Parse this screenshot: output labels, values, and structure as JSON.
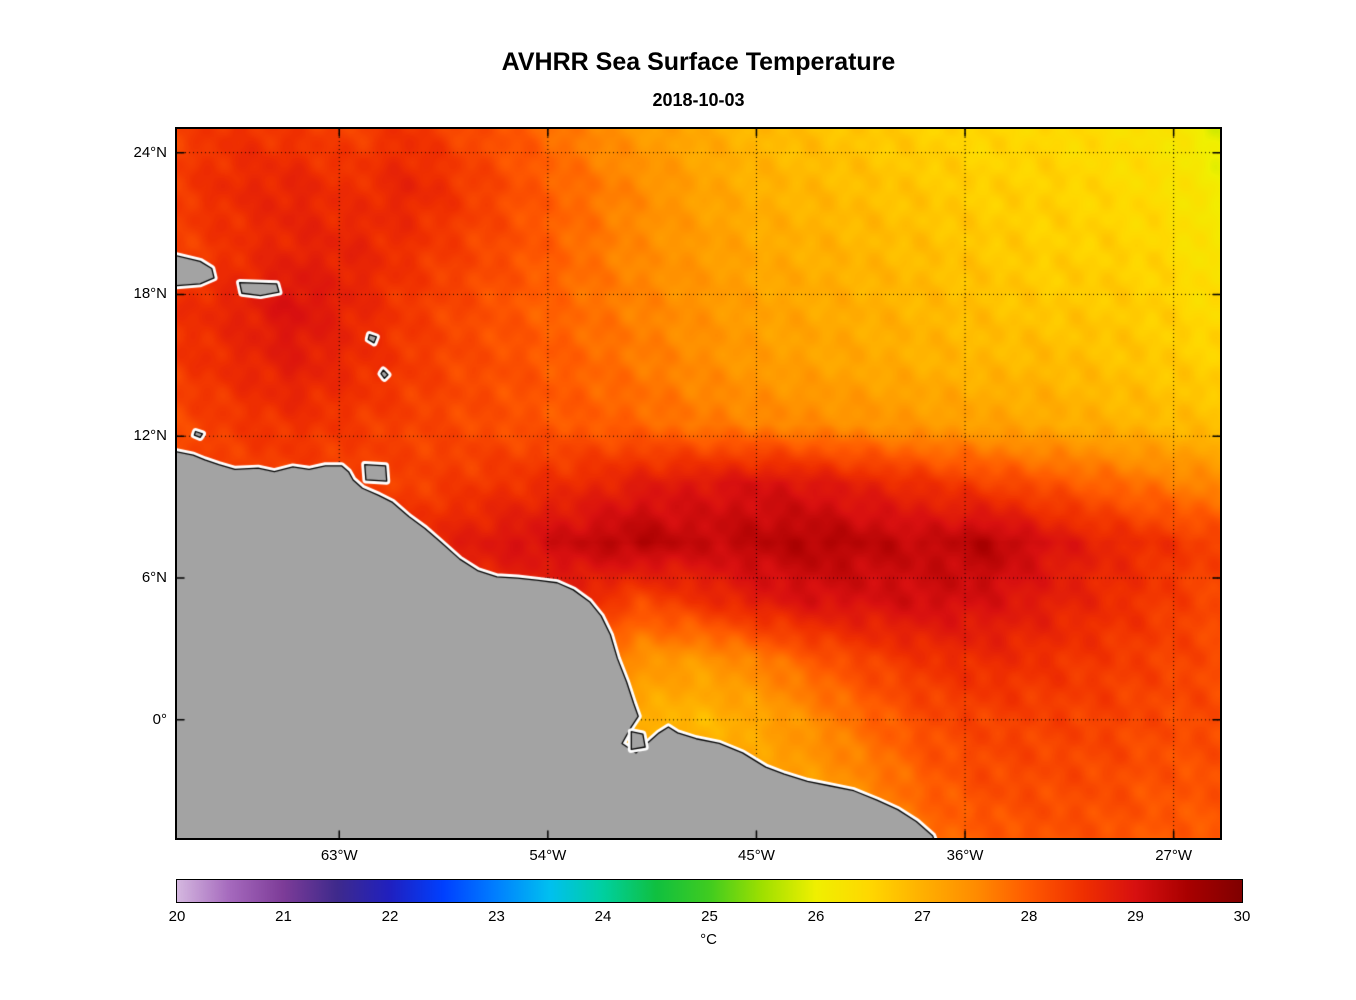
{
  "chart_data": {
    "type": "heatmap",
    "title": "AVHRR Sea Surface Temperature",
    "subtitle": "2018-10-03",
    "variable": "Sea Surface Temperature",
    "units": "°C",
    "extent": {
      "lon_min": -70,
      "lon_max": -25,
      "lat_min": -5,
      "lat_max": 25
    },
    "grid": {
      "lon_start": -70,
      "lon_step": 2.5,
      "lat_start": 25,
      "lat_step": -2.5,
      "values": [
        [
          28.3,
          28.5,
          28.4,
          28.3,
          28.5,
          28.2,
          28.0,
          27.6,
          27.3,
          27.1,
          26.9,
          26.8,
          26.7,
          26.6,
          26.5,
          26.5,
          26.4,
          26.3,
          25.9
        ],
        [
          28.4,
          28.6,
          28.7,
          28.5,
          28.7,
          28.4,
          28.1,
          27.8,
          27.5,
          27.2,
          27.0,
          26.9,
          26.8,
          26.7,
          26.6,
          26.6,
          26.5,
          26.4,
          26.1
        ],
        [
          28.3,
          28.5,
          28.7,
          28.7,
          28.5,
          28.3,
          28.1,
          27.8,
          27.5,
          27.3,
          27.1,
          27.0,
          26.9,
          26.8,
          26.7,
          26.6,
          26.6,
          26.5,
          26.2
        ],
        [
          28.5,
          28.7,
          29.0,
          28.7,
          28.4,
          28.2,
          28.0,
          27.8,
          27.6,
          27.4,
          27.2,
          27.1,
          27.0,
          26.9,
          26.8,
          26.7,
          26.7,
          26.6,
          26.4
        ],
        [
          28.4,
          28.6,
          28.8,
          28.6,
          28.4,
          28.2,
          28.1,
          27.9,
          27.7,
          27.5,
          27.3,
          27.2,
          27.1,
          27.0,
          26.9,
          26.9,
          26.8,
          26.7,
          26.6
        ],
        [
          28.2,
          28.4,
          28.5,
          28.4,
          28.3,
          28.2,
          28.1,
          28.0,
          27.9,
          27.7,
          27.6,
          27.5,
          27.4,
          27.3,
          27.2,
          27.1,
          27.0,
          26.9,
          26.8
        ],
        [
          28.2,
          28.3,
          28.3,
          28.3,
          28.3,
          28.4,
          28.5,
          28.6,
          28.8,
          28.9,
          29.0,
          28.9,
          28.7,
          28.5,
          28.3,
          28.1,
          27.9,
          27.7,
          27.5
        ],
        [
          28.4,
          28.4,
          28.5,
          28.5,
          28.6,
          28.8,
          29.0,
          29.2,
          29.4,
          29.2,
          29.3,
          29.4,
          29.3,
          29.2,
          29.4,
          29.0,
          28.7,
          28.5,
          28.3
        ],
        [
          28.5,
          28.5,
          28.5,
          28.5,
          28.5,
          28.6,
          28.6,
          28.6,
          28.2,
          28.5,
          28.8,
          29.0,
          29.0,
          29.1,
          29.0,
          28.8,
          28.6,
          28.4,
          28.2
        ],
        [
          28.2,
          28.2,
          28.2,
          28.2,
          28.2,
          28.1,
          28.0,
          27.8,
          27.4,
          27.3,
          27.6,
          28.0,
          28.3,
          28.5,
          28.6,
          28.5,
          28.4,
          28.3,
          28.2
        ],
        [
          28.0,
          28.0,
          28.0,
          28.0,
          27.9,
          27.8,
          27.6,
          27.3,
          27.0,
          26.9,
          27.1,
          27.5,
          27.9,
          28.2,
          28.3,
          28.3,
          28.3,
          28.2,
          28.2
        ],
        [
          27.8,
          27.8,
          27.8,
          27.8,
          27.8,
          27.7,
          27.6,
          27.4,
          27.2,
          27.1,
          27.2,
          27.3,
          27.6,
          28.0,
          28.2,
          28.2,
          28.2,
          28.1,
          28.1
        ],
        [
          27.6,
          27.6,
          27.6,
          27.6,
          27.6,
          27.6,
          27.5,
          27.4,
          27.3,
          27.2,
          27.2,
          27.3,
          27.5,
          27.8,
          28.0,
          28.1,
          28.1,
          28.0,
          28.0
        ]
      ]
    },
    "colormap": {
      "min": 20,
      "max": 30,
      "stops": [
        [
          20.0,
          "#D5B8E0"
        ],
        [
          20.5,
          "#A569BD"
        ],
        [
          21.0,
          "#7D3C98"
        ],
        [
          21.5,
          "#3F2A8C"
        ],
        [
          22.0,
          "#2020C0"
        ],
        [
          22.5,
          "#0040FF"
        ],
        [
          23.0,
          "#0080FF"
        ],
        [
          23.5,
          "#00C0F0"
        ],
        [
          24.0,
          "#00D0A0"
        ],
        [
          24.5,
          "#10C040"
        ],
        [
          25.0,
          "#40CC20"
        ],
        [
          25.5,
          "#A0E000"
        ],
        [
          26.0,
          "#F0F000"
        ],
        [
          26.5,
          "#FFD800"
        ],
        [
          27.0,
          "#FFB000"
        ],
        [
          27.5,
          "#FF8C00"
        ],
        [
          28.0,
          "#FF5A00"
        ],
        [
          28.5,
          "#F03000"
        ],
        [
          29.0,
          "#D81010"
        ],
        [
          29.5,
          "#A80000"
        ],
        [
          30.0,
          "#800000"
        ]
      ]
    },
    "colorbar": {
      "ticks": [
        20,
        21,
        22,
        23,
        24,
        25,
        26,
        27,
        28,
        29,
        30
      ],
      "label": "°C"
    },
    "xticks": [
      {
        "label": "63°W",
        "lon": -63
      },
      {
        "label": "54°W",
        "lon": -54
      },
      {
        "label": "45°W",
        "lon": -45
      },
      {
        "label": "36°W",
        "lon": -36
      },
      {
        "label": "27°W",
        "lon": -27
      }
    ],
    "yticks": [
      {
        "label": "24°N",
        "lat": 24
      },
      {
        "label": "18°N",
        "lat": 18
      },
      {
        "label": "12°N",
        "lat": 12
      },
      {
        "label": "6°N",
        "lat": 6
      },
      {
        "label": "0°",
        "lat": 0
      }
    ],
    "grid_on": true,
    "land": {
      "fill": "#A3A3A3",
      "coast_outline": "#000000",
      "coast_halo": "#FFFFFF",
      "polygons": {
        "south_america": [
          [
            -70.3,
            11.4
          ],
          [
            -69.3,
            11.2
          ],
          [
            -68.8,
            11.0
          ],
          [
            -68.2,
            10.8
          ],
          [
            -67.5,
            10.6
          ],
          [
            -66.5,
            10.65
          ],
          [
            -65.8,
            10.5
          ],
          [
            -65.0,
            10.7
          ],
          [
            -64.3,
            10.6
          ],
          [
            -63.6,
            10.75
          ],
          [
            -62.9,
            10.75
          ],
          [
            -62.6,
            10.5
          ],
          [
            -62.4,
            10.15
          ],
          [
            -62.0,
            9.8
          ],
          [
            -61.3,
            9.5
          ],
          [
            -60.7,
            9.2
          ],
          [
            -60.0,
            8.6
          ],
          [
            -59.3,
            8.1
          ],
          [
            -58.6,
            7.5
          ],
          [
            -57.8,
            6.8
          ],
          [
            -57.0,
            6.3
          ],
          [
            -56.2,
            6.05
          ],
          [
            -55.3,
            6.0
          ],
          [
            -54.4,
            5.9
          ],
          [
            -53.6,
            5.8
          ],
          [
            -52.9,
            5.5
          ],
          [
            -52.2,
            5.0
          ],
          [
            -51.7,
            4.4
          ],
          [
            -51.3,
            3.6
          ],
          [
            -51.0,
            2.6
          ],
          [
            -50.6,
            1.6
          ],
          [
            -50.3,
            0.7
          ],
          [
            -50.1,
            0.15
          ],
          [
            -50.4,
            -0.3
          ],
          [
            -50.8,
            -1.0
          ],
          [
            -50.2,
            -1.4
          ],
          [
            -49.6,
            -0.9
          ],
          [
            -49.2,
            -0.55
          ],
          [
            -48.8,
            -0.3
          ],
          [
            -48.4,
            -0.55
          ],
          [
            -47.6,
            -0.8
          ],
          [
            -46.6,
            -1.0
          ],
          [
            -45.6,
            -1.4
          ],
          [
            -44.6,
            -2.0
          ],
          [
            -43.8,
            -2.3
          ],
          [
            -42.8,
            -2.6
          ],
          [
            -41.8,
            -2.8
          ],
          [
            -40.8,
            -3.0
          ],
          [
            -39.8,
            -3.4
          ],
          [
            -38.9,
            -3.8
          ],
          [
            -38.1,
            -4.3
          ],
          [
            -37.4,
            -4.9
          ],
          [
            -37.2,
            -5.4
          ],
          [
            -70.3,
            -5.4
          ]
        ],
        "hispaniola": [
          [
            -70.3,
            19.7
          ],
          [
            -69.0,
            19.4
          ],
          [
            -68.5,
            19.1
          ],
          [
            -68.4,
            18.7
          ],
          [
            -69.0,
            18.45
          ],
          [
            -70.3,
            18.35
          ]
        ],
        "puerto_rico": [
          [
            -67.3,
            18.5
          ],
          [
            -65.7,
            18.45
          ],
          [
            -65.6,
            18.1
          ],
          [
            -66.4,
            17.95
          ],
          [
            -67.2,
            18.05
          ]
        ],
        "curacao": [
          [
            -69.2,
            12.2
          ],
          [
            -68.9,
            12.1
          ],
          [
            -69.0,
            11.95
          ],
          [
            -69.25,
            12.05
          ]
        ],
        "guadeloupe": [
          [
            -61.7,
            16.3
          ],
          [
            -61.4,
            16.2
          ],
          [
            -61.5,
            15.95
          ],
          [
            -61.75,
            16.1
          ]
        ],
        "martinique": [
          [
            -61.1,
            14.8
          ],
          [
            -60.9,
            14.6
          ],
          [
            -61.05,
            14.45
          ],
          [
            -61.2,
            14.65
          ]
        ],
        "trinidad": [
          [
            -61.9,
            10.8
          ],
          [
            -61.0,
            10.75
          ],
          [
            -60.95,
            10.1
          ],
          [
            -61.85,
            10.15
          ]
        ],
        "marajo": [
          [
            -50.4,
            -0.5
          ],
          [
            -49.9,
            -0.6
          ],
          [
            -49.8,
            -1.15
          ],
          [
            -50.4,
            -1.25
          ]
        ]
      }
    }
  }
}
